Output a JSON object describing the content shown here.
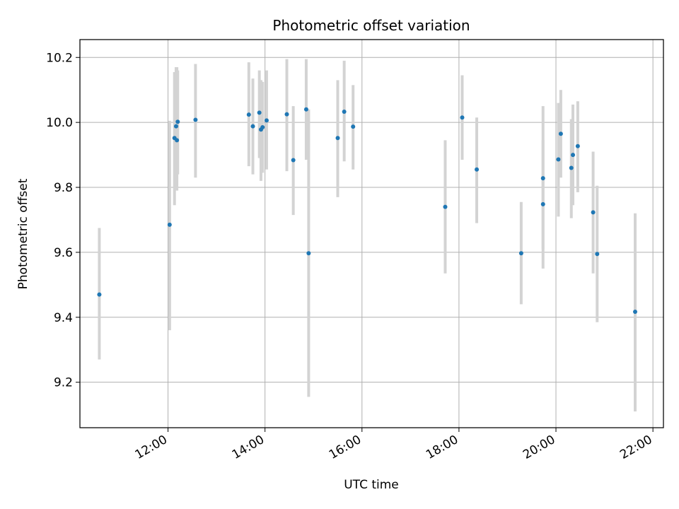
{
  "chart_data": {
    "type": "scatter",
    "title": "Photometric offset variation",
    "xlabel": "UTC time",
    "ylabel": "Photometric offset",
    "x_unit": "hours (UTC)",
    "xlim": [
      "10:11",
      "22:13"
    ],
    "ylim": [
      9.06,
      10.255
    ],
    "xticks": [
      {
        "value": "12:00",
        "label": "12:00"
      },
      {
        "value": "14:00",
        "label": "14:00"
      },
      {
        "value": "16:00",
        "label": "16:00"
      },
      {
        "value": "18:00",
        "label": "18:00"
      },
      {
        "value": "20:00",
        "label": "20:00"
      },
      {
        "value": "22:00",
        "label": "22:00"
      }
    ],
    "yticks": [
      {
        "value": 9.2,
        "label": "9.2"
      },
      {
        "value": 9.4,
        "label": "9.4"
      },
      {
        "value": 9.6,
        "label": "9.6"
      },
      {
        "value": 9.8,
        "label": "9.8"
      },
      {
        "value": 10.0,
        "label": "10.0"
      },
      {
        "value": 10.2,
        "label": "10.2"
      }
    ],
    "grid": true,
    "marker_color": "#1f77b4",
    "errorbar_color": "#d3d3d3",
    "points": [
      {
        "t": "10:35",
        "y": 9.47,
        "lo": 9.27,
        "hi": 9.675
      },
      {
        "t": "12:02",
        "y": 9.685,
        "lo": 9.36,
        "hi": 10.005
      },
      {
        "t": "12:08",
        "y": 9.952,
        "lo": 9.745,
        "hi": 10.155
      },
      {
        "t": "12:10",
        "y": 9.988,
        "lo": 9.8,
        "hi": 10.17
      },
      {
        "t": "12:11",
        "y": 9.945,
        "lo": 9.79,
        "hi": 10.17
      },
      {
        "t": "12:12",
        "y": 10.002,
        "lo": 9.84,
        "hi": 10.16
      },
      {
        "t": "12:34",
        "y": 10.008,
        "lo": 9.83,
        "hi": 10.18
      },
      {
        "t": "13:40",
        "y": 10.024,
        "lo": 9.865,
        "hi": 10.185
      },
      {
        "t": "13:45",
        "y": 9.988,
        "lo": 9.84,
        "hi": 10.135
      },
      {
        "t": "13:53",
        "y": 10.03,
        "lo": 9.89,
        "hi": 10.16
      },
      {
        "t": "13:55",
        "y": 9.978,
        "lo": 9.82,
        "hi": 10.13
      },
      {
        "t": "13:57",
        "y": 9.985,
        "lo": 9.845,
        "hi": 10.125
      },
      {
        "t": "14:02",
        "y": 10.006,
        "lo": 9.855,
        "hi": 10.16
      },
      {
        "t": "14:27",
        "y": 10.025,
        "lo": 9.85,
        "hi": 10.195
      },
      {
        "t": "14:35",
        "y": 9.884,
        "lo": 9.715,
        "hi": 10.05
      },
      {
        "t": "14:51",
        "y": 10.04,
        "lo": 9.885,
        "hi": 10.195
      },
      {
        "t": "14:54",
        "y": 9.597,
        "lo": 9.155,
        "hi": 10.04
      },
      {
        "t": "15:30",
        "y": 9.952,
        "lo": 9.77,
        "hi": 10.13
      },
      {
        "t": "15:38",
        "y": 10.033,
        "lo": 9.88,
        "hi": 10.19
      },
      {
        "t": "15:49",
        "y": 9.987,
        "lo": 9.855,
        "hi": 10.115
      },
      {
        "t": "17:43",
        "y": 9.74,
        "lo": 9.535,
        "hi": 9.945
      },
      {
        "t": "18:04",
        "y": 10.015,
        "lo": 9.885,
        "hi": 10.145
      },
      {
        "t": "18:22",
        "y": 9.855,
        "lo": 9.69,
        "hi": 10.015
      },
      {
        "t": "19:17",
        "y": 9.597,
        "lo": 9.44,
        "hi": 9.755
      },
      {
        "t": "19:44",
        "y": 9.748,
        "lo": 9.55,
        "hi": 9.945
      },
      {
        "t": "19:44",
        "y": 9.828,
        "lo": 9.61,
        "hi": 10.05
      },
      {
        "t": "20:03",
        "y": 9.886,
        "lo": 9.71,
        "hi": 10.06
      },
      {
        "t": "20:06",
        "y": 9.965,
        "lo": 9.83,
        "hi": 10.1
      },
      {
        "t": "20:19",
        "y": 9.86,
        "lo": 9.705,
        "hi": 10.01
      },
      {
        "t": "20:21",
        "y": 9.9,
        "lo": 9.745,
        "hi": 10.055
      },
      {
        "t": "20:27",
        "y": 9.927,
        "lo": 9.785,
        "hi": 10.065
      },
      {
        "t": "20:46",
        "y": 9.723,
        "lo": 9.535,
        "hi": 9.91
      },
      {
        "t": "20:51",
        "y": 9.595,
        "lo": 9.385,
        "hi": 9.805
      },
      {
        "t": "21:38",
        "y": 9.417,
        "lo": 9.11,
        "hi": 9.72
      }
    ]
  }
}
